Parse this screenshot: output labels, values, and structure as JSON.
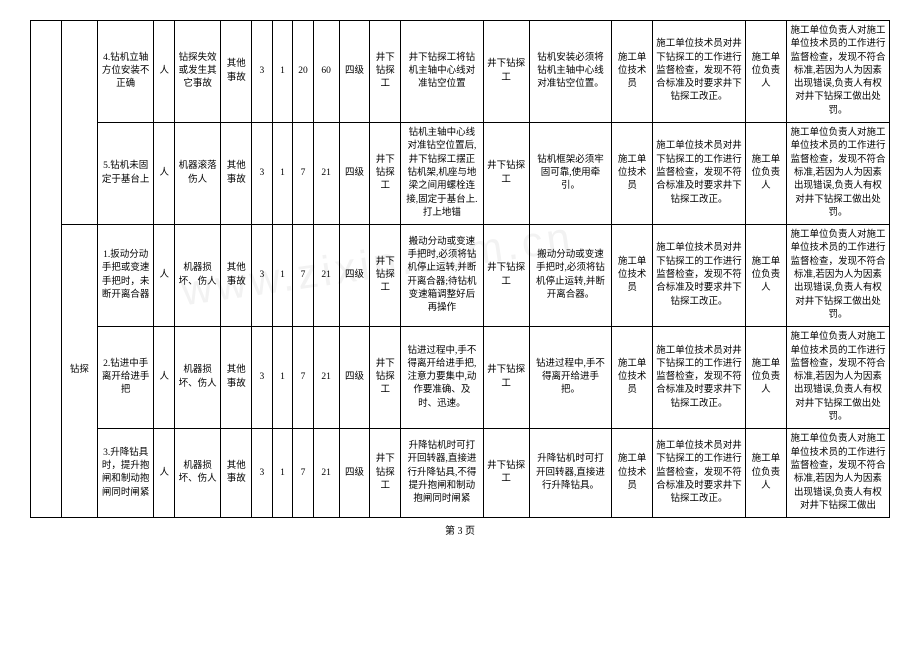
{
  "watermark": "www.zixin.com.cn",
  "footer": "第 3 页",
  "group1": "",
  "group2": "钻探",
  "rows": [
    {
      "c3": "4.钻机立轴方位安装不正确",
      "c4": "人",
      "c5": "钻探失效或发生其它事故",
      "c6": "其他事故",
      "c7": "3",
      "c8": "1",
      "c9": "20",
      "c10": "60",
      "c11": "四级",
      "c12": "井下钻探工",
      "c13": "井下钻探工将钻机主轴中心线对准钻空位置",
      "c14": "井下钻探工",
      "c15": "钻机安装必须将钻机主轴中心线对准钻空位置。",
      "c16": "施工单位技术员",
      "c17": "施工单位技术员对井下钻探工的工作进行监督检查，发现不符合标准及时要求井下钻探工改正。",
      "c18": "施工单位负责人",
      "c19": "施工单位负责人对施工单位技术员的工作进行监督检查，发现不符合标准,若因为人为因素出现错误,负责人有权对井下钻探工做出处罚。"
    },
    {
      "c3": "5.钻机未固定于基台上",
      "c4": "人",
      "c5": "机器滚落伤人",
      "c6": "其他事故",
      "c7": "3",
      "c8": "1",
      "c9": "7",
      "c10": "21",
      "c11": "四级",
      "c12": "井下钻探工",
      "c13": "钻机主轴中心线对准钻空位置后,井下钻探工摆正钻机架,机座与地梁之间用螺栓连接,固定于基台上.打上地锚",
      "c14": "井下钻探工",
      "c15": "钻机框架必须牢固可靠,使用牵引。",
      "c16": "施工单位技术员",
      "c17": "施工单位技术员对井下钻探工的工作进行监督检查，发现不符合标准及时要求井下钻探工改正。",
      "c18": "施工单位负责人",
      "c19": "施工单位负责人对施工单位技术员的工作进行监督检查，发现不符合标准,若因为人为因素出现错误,负责人有权对井下钻探工做出处罚。"
    },
    {
      "c3": "1.扳动分动手把或变速手把时，未断开离合器",
      "c4": "人",
      "c5": "机器损坏、伤人",
      "c6": "其他事故",
      "c7": "3",
      "c8": "1",
      "c9": "7",
      "c10": "21",
      "c11": "四级",
      "c12": "井下钻探工",
      "c13": "搬动分动或变速手把时,必须将钻机停止运转,并断开离合器;待钻机变速箱调整好后再操作",
      "c14": "井下钻探工",
      "c15": "搬动分动或变速手把时,必须将钻机停止运转,并断开离合器。",
      "c16": "施工单位技术员",
      "c17": "施工单位技术员对井下钻探工的工作进行监督检查，发现不符合标准及时要求井下钻探工改正。",
      "c18": "施工单位负责人",
      "c19": "施工单位负责人对施工单位技术员的工作进行监督检查，发现不符合标准,若因为人为因素出现错误,负责人有权对井下钻探工做出处罚。"
    },
    {
      "c3": "2.钻进中手离开给进手把",
      "c4": "人",
      "c5": "机器损坏、伤人",
      "c6": "其他事故",
      "c7": "3",
      "c8": "1",
      "c9": "7",
      "c10": "21",
      "c11": "四级",
      "c12": "井下钻探工",
      "c13": "钻进过程中,手不得离开给进手把,注意力要集中,动作要准确、及时、迅速。",
      "c14": "井下钻探工",
      "c15": "钻进过程中,手不得离开给进手把。",
      "c16": "施工单位技术员",
      "c17": "施工单位技术员对井下钻探工的工作进行监督检查，发现不符合标准及时要求井下钻探工改正。",
      "c18": "施工单位负责人",
      "c19": "施工单位负责人对施工单位技术员的工作进行监督检查，发现不符合标准,若因为人为因素出现错误,负责人有权对井下钻探工做出处罚。"
    },
    {
      "c3": "3.升降钻具时，提升抱闸和制动抱闸同时闸紧",
      "c4": "人",
      "c5": "机器损坏、伤人",
      "c6": "其他事故",
      "c7": "3",
      "c8": "1",
      "c9": "7",
      "c10": "21",
      "c11": "四级",
      "c12": "井下钻探工",
      "c13": "升降钻机时可打开回转器,直接进行升降钻具,不得提升抱闸和制动抱闸同时闸紧",
      "c14": "井下钻探工",
      "c15": "升降钻机时可打开回转器,直接进行升降钻具。",
      "c16": "施工单位技术员",
      "c17": "施工单位技术员对井下钻探工的工作进行监督检查，发现不符合标准及时要求井下钻探工改正。",
      "c18": "施工单位负责人",
      "c19": "施工单位负责人对施工单位技术员的工作进行监督检查，发现不符合标准,若因为人为因素出现错误,负责人有权对井下钻探工做出"
    }
  ]
}
